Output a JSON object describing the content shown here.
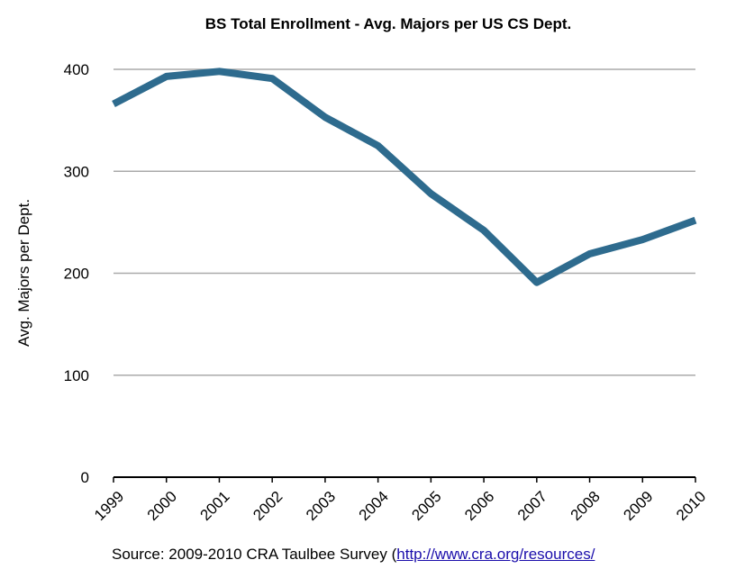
{
  "chart_data": {
    "type": "line",
    "title": "BS Total Enrollment - Avg. Majors per US CS Dept.",
    "xlabel": "",
    "ylabel": "Avg. Majors per Dept.",
    "categories": [
      "1999",
      "2000",
      "2001",
      "2002",
      "2003",
      "2004",
      "2005",
      "2006",
      "2007",
      "2008",
      "2009",
      "2010"
    ],
    "series": [
      {
        "name": "Avg. Majors per Dept.",
        "values": [
          366,
          393,
          398,
          391,
          353,
          325,
          278,
          242,
          191,
          219,
          233,
          252
        ]
      }
    ],
    "ylim": [
      0,
      400
    ],
    "yticks": [
      "0",
      "100",
      "200",
      "300",
      "400"
    ],
    "grid": true,
    "line_color": "#2e6b8e",
    "grid_color": "#aaaaaa"
  },
  "source": {
    "prefix": "Source: 2009-2010 CRA Taulbee Survey (",
    "link_text": "http://www.cra.org/resources/"
  }
}
